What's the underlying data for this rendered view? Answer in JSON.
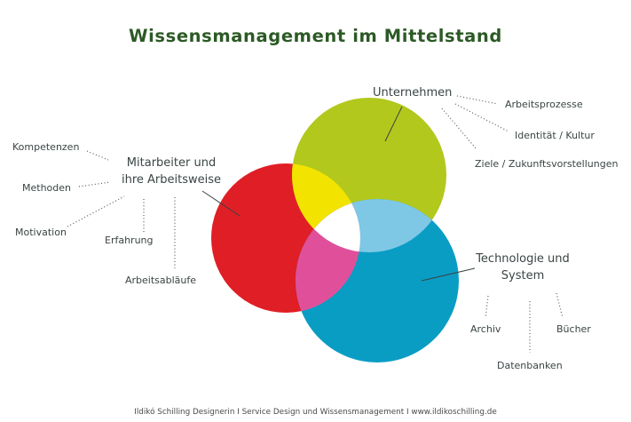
{
  "title": "Wissensmanagement im Mittelstand",
  "footer": "Ildikó Schilling Designerin I Service Design und Wissensmanagement I www.ildikoschilling.de",
  "colors": {
    "title": "#2c5a25",
    "mitarbeiter_red": "#e01e25",
    "unternehmen_green": "#b2c81d",
    "technologie_blue": "#0a9dc4",
    "overlap_yellow": "#f2e300",
    "overlap_lightblue": "#7ec8e6",
    "overlap_pink": "#e0509a",
    "center_white": "#ffffff"
  },
  "groups": {
    "mitarbeiter": {
      "label_line1": "Mitarbeiter und",
      "label_line2": "ihre Arbeitsweise",
      "items": [
        "Kompetenzen",
        "Methoden",
        "Motivation",
        "Erfahrung",
        "Arbeitsabläufe"
      ]
    },
    "unternehmen": {
      "label": "Unternehmen",
      "items": [
        "Arbeitsprozesse",
        "Identität / Kultur",
        "Ziele / Zukunftsvorstellungen"
      ]
    },
    "technologie": {
      "label_line1": "Technologie und",
      "label_line2": "System",
      "items": [
        "Archiv",
        "Datenbanken",
        "Bücher"
      ]
    }
  }
}
